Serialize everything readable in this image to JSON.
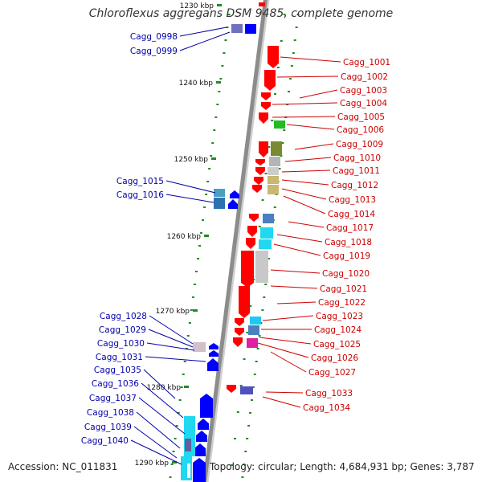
{
  "title": "Chloroflexus aggregans DSM 9485, complete genome",
  "footer": {
    "accession": "Accession: NC_011831",
    "summary": "Topology: circular; Length: 4,684,931 bp; Genes: 3,787"
  },
  "colors": {
    "backbone": "#8c8c8c",
    "forward_gene": "#ff0000",
    "reverse_gene": "#0000ff",
    "forward_label": "#cc0000",
    "reverse_label": "#0000aa",
    "tick": "#228b22"
  },
  "kbp_ticks": [
    "1230 kbp",
    "1240 kbp",
    "1250 kbp",
    "1260 kbp",
    "1270 kbp",
    "1280 kbp",
    "1290 kbp"
  ],
  "left_labels": [
    "Cagg_0998",
    "Cagg_0999",
    "Cagg_1015",
    "Cagg_1016",
    "Cagg_1028",
    "Cagg_1029",
    "Cagg_1030",
    "Cagg_1031",
    "Cagg_1035",
    "Cagg_1036",
    "Cagg_1037",
    "Cagg_1038",
    "Cagg_1039",
    "Cagg_1040"
  ],
  "right_labels": [
    "Cagg_1001",
    "Cagg_1002",
    "Cagg_1003",
    "Cagg_1004",
    "Cagg_1005",
    "Cagg_1006",
    "Cagg_1009",
    "Cagg_1010",
    "Cagg_1011",
    "Cagg_1012",
    "Cagg_1013",
    "Cagg_1014",
    "Cagg_1017",
    "Cagg_1018",
    "Cagg_1019",
    "Cagg_1020",
    "Cagg_1021",
    "Cagg_1022",
    "Cagg_1023",
    "Cagg_1024",
    "Cagg_1025",
    "Cagg_1026",
    "Cagg_1027",
    "Cagg_1033",
    "Cagg_1034"
  ]
}
